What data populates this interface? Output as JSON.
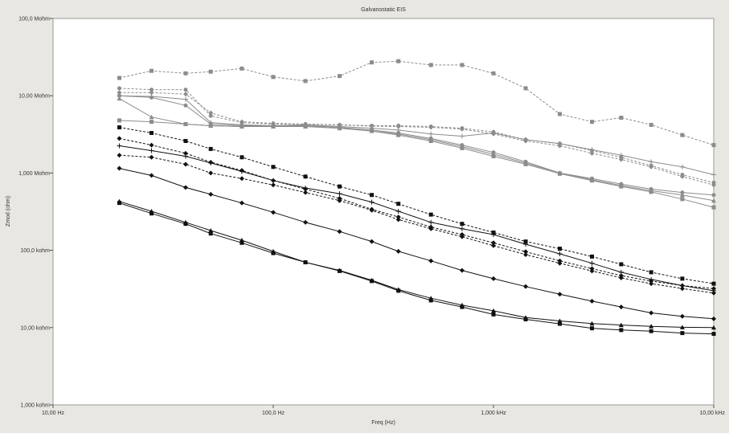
{
  "chart_data": {
    "type": "line",
    "title": "Galvanostatic EIS",
    "xlabel": "Freq (Hz)",
    "ylabel": "Zmod (ohm)",
    "x_scale": "log",
    "y_scale": "log",
    "xlim": [
      10,
      10000
    ],
    "ylim": [
      1000,
      100000000
    ],
    "grid": false,
    "x_ticks": [
      {
        "value": 10,
        "label": "10,00 Hz"
      },
      {
        "value": 100,
        "label": "100,0 Hz"
      },
      {
        "value": 1000,
        "label": "1,000 kHz"
      },
      {
        "value": 10000,
        "label": "10,00 kHz"
      }
    ],
    "y_ticks": [
      {
        "value": 1000,
        "label": "1,000 kohm"
      },
      {
        "value": 10000,
        "label": "10,00 kohm"
      },
      {
        "value": 100000,
        "label": "100,0 kohm"
      },
      {
        "value": 1000000,
        "label": "1,000 Mohm"
      },
      {
        "value": 10000000,
        "label": "10,00 Mohm"
      },
      {
        "value": 100000000,
        "label": "100,0 Mohm"
      }
    ],
    "x": [
      20,
      28,
      40,
      52,
      72,
      100,
      140,
      200,
      280,
      370,
      520,
      720,
      1000,
      1400,
      2000,
      2800,
      3800,
      5200,
      7200,
      10000
    ],
    "series": [
      {
        "color": "#8c8c8c",
        "dash": true,
        "marker": "square",
        "values": [
          17000000,
          21000000,
          19500000,
          20500000,
          22500000,
          17500000,
          15500000,
          18000000,
          27000000,
          28000000,
          25000000,
          25000000,
          19500000,
          12500000,
          5800000,
          4600000,
          5200000,
          4200000,
          3100000,
          2300000
        ]
      },
      {
        "color": "#8c8c8c",
        "dash": true,
        "marker": "circle",
        "values": [
          12500000,
          12000000,
          12000000,
          5500000,
          4500000,
          4300000,
          4300000,
          4200000,
          4100000,
          4100000,
          4000000,
          3800000,
          3400000,
          2700000,
          2400000,
          1950000,
          1600000,
          1250000,
          950000,
          750000
        ]
      },
      {
        "color": "#8c8c8c",
        "dash": true,
        "marker": "diamond",
        "values": [
          11000000,
          11000000,
          10500000,
          6000000,
          4600000,
          4400000,
          4300000,
          4200000,
          4050000,
          4000000,
          3900000,
          3700000,
          3200000,
          2600000,
          2250000,
          1800000,
          1500000,
          1200000,
          900000,
          700000
        ]
      },
      {
        "color": "#8c8c8c",
        "dash": false,
        "marker": "plus",
        "values": [
          10000000,
          9800000,
          9000000,
          4500000,
          4200000,
          4100000,
          4200000,
          4000000,
          3800000,
          3600000,
          3200000,
          3000000,
          3300000,
          2700000,
          2400000,
          2000000,
          1700000,
          1400000,
          1200000,
          950000
        ]
      },
      {
        "color": "#8c8c8c",
        "dash": false,
        "marker": "circle",
        "values": [
          10000000,
          9500000,
          7500000,
          4300000,
          4100000,
          4100000,
          4100000,
          3900000,
          3600000,
          3300000,
          2800000,
          2300000,
          1850000,
          1400000,
          1000000,
          850000,
          720000,
          620000,
          560000,
          520000
        ]
      },
      {
        "color": "#8c8c8c",
        "dash": false,
        "marker": "triangle",
        "values": [
          9200000,
          5300000,
          4300000,
          4100000,
          4000000,
          4000000,
          4000000,
          3800000,
          3500000,
          3200000,
          2700000,
          2200000,
          1750000,
          1350000,
          1000000,
          820000,
          690000,
          590000,
          520000,
          440000
        ]
      },
      {
        "color": "#8c8c8c",
        "dash": false,
        "marker": "square",
        "values": [
          4800000,
          4600000,
          4300000,
          4100000,
          4000000,
          4000000,
          4000000,
          3800000,
          3500000,
          3100000,
          2600000,
          2100000,
          1650000,
          1300000,
          980000,
          800000,
          670000,
          570000,
          460000,
          360000
        ]
      },
      {
        "color": "#111111",
        "dash": true,
        "marker": "square",
        "values": [
          3900000,
          3300000,
          2600000,
          2050000,
          1600000,
          1200000,
          900000,
          670000,
          520000,
          400000,
          290000,
          220000,
          170000,
          130000,
          105000,
          83000,
          66000,
          52000,
          43000,
          37000
        ]
      },
      {
        "color": "#111111",
        "dash": true,
        "marker": "diamond",
        "values": [
          2800000,
          2300000,
          1800000,
          1380000,
          1080000,
          800000,
          620000,
          470000,
          340000,
          270000,
          200000,
          160000,
          125000,
          96000,
          73000,
          58000,
          47000,
          40000,
          35000,
          32000
        ]
      },
      {
        "color": "#111111",
        "dash": false,
        "marker": "plus",
        "values": [
          2250000,
          1950000,
          1650000,
          1350000,
          1050000,
          800000,
          640000,
          540000,
          420000,
          320000,
          230000,
          190000,
          160000,
          120000,
          90000,
          68000,
          52000,
          42000,
          35000,
          30000
        ]
      },
      {
        "color": "#111111",
        "dash": true,
        "marker": "diamond",
        "values": [
          1700000,
          1600000,
          1300000,
          1000000,
          850000,
          700000,
          560000,
          440000,
          330000,
          250000,
          190000,
          150000,
          115000,
          88000,
          68000,
          54000,
          44000,
          37000,
          32000,
          28000
        ]
      },
      {
        "color": "#111111",
        "dash": false,
        "marker": "diamond",
        "values": [
          1150000,
          930000,
          650000,
          530000,
          410000,
          310000,
          230000,
          175000,
          130000,
          97000,
          73000,
          55000,
          43000,
          34000,
          27000,
          22000,
          18500,
          15500,
          14000,
          13000
        ]
      },
      {
        "color": "#111111",
        "dash": false,
        "marker": "triangle",
        "values": [
          430000,
          320000,
          230000,
          180000,
          135000,
          97000,
          70000,
          55000,
          41000,
          31000,
          24000,
          19500,
          16500,
          13500,
          12200,
          11300,
          10800,
          10400,
          10100,
          10000
        ]
      },
      {
        "color": "#111111",
        "dash": false,
        "marker": "square",
        "values": [
          410000,
          300000,
          220000,
          165000,
          125000,
          92000,
          70000,
          54000,
          40000,
          30000,
          22500,
          18500,
          14800,
          12800,
          11200,
          9800,
          9300,
          9000,
          8500,
          8300
        ]
      }
    ]
  }
}
